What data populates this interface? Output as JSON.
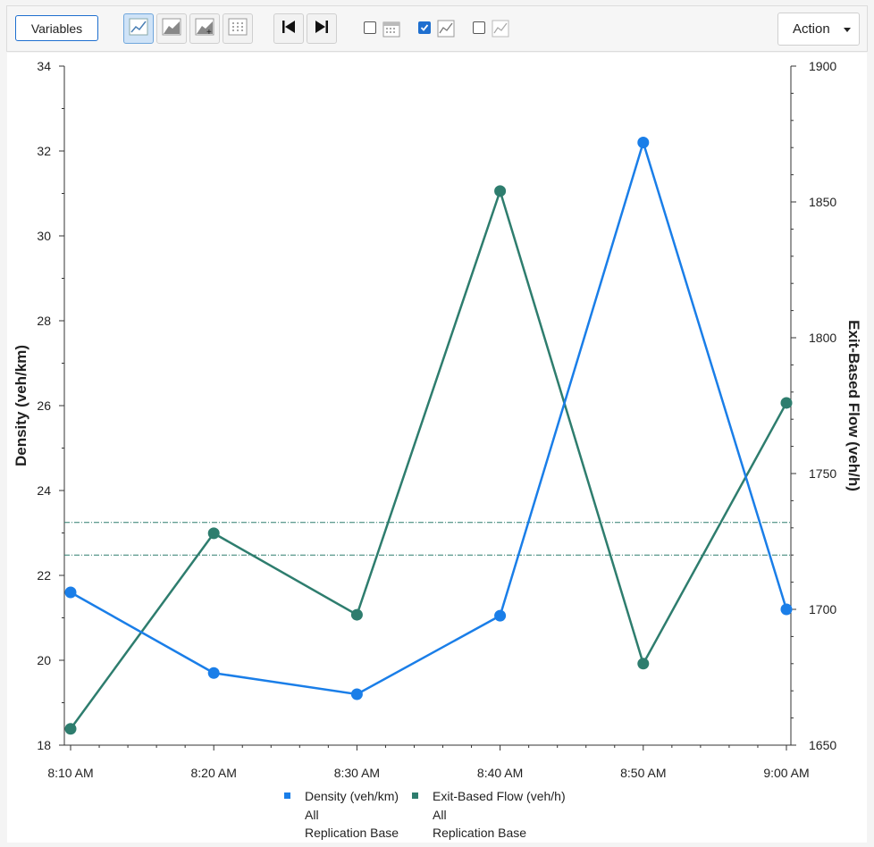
{
  "toolbar": {
    "variables_label": "Variables",
    "action_label": "Action",
    "icons": [
      "line-chart-icon",
      "area-chart-icon",
      "add-chart-icon",
      "grid-icon",
      "skip-to-start-icon",
      "skip-to-end-icon",
      "calendar-icon",
      "line-chart-icon",
      "line-chart-icon"
    ],
    "checkboxes": [
      {
        "icon": "calendar-icon",
        "checked": false
      },
      {
        "icon": "line-chart-icon",
        "checked": true
      },
      {
        "icon": "line-chart-icon",
        "checked": false
      }
    ]
  },
  "chart_data": {
    "type": "line",
    "title": "",
    "x": [
      "8:10 AM",
      "8:20 AM",
      "8:30 AM",
      "8:40 AM",
      "8:50 AM",
      "9:00 AM"
    ],
    "ylabel_left": "Density (veh/km)",
    "ylabel_right": "Exit-Based Flow (veh/h)",
    "ylim_left": [
      18,
      34
    ],
    "ylim_right": [
      1650,
      1900
    ],
    "yticks_left": [
      "18",
      "20",
      "22",
      "24",
      "26",
      "28",
      "30",
      "32",
      "34"
    ],
    "yticks_right": [
      "1650",
      "1700",
      "1750",
      "1800",
      "1850",
      "1900"
    ],
    "series": [
      {
        "name": "Density (veh/km)",
        "sub1": "All",
        "sub2": "Replication Base",
        "axis": "left",
        "color": "#1a7ee8",
        "values": [
          21.6,
          19.7,
          19.2,
          21.05,
          32.2,
          21.2
        ]
      },
      {
        "name": "Exit-Based Flow (veh/h)",
        "sub1": "All",
        "sub2": "Replication Base",
        "axis": "right",
        "color": "#2e7d6e",
        "values": [
          1656,
          1728,
          1698,
          1854,
          1680,
          1776
        ]
      }
    ],
    "reference_lines_right": [
      1732,
      1720
    ],
    "legend_position": "bottom",
    "grid": false
  }
}
